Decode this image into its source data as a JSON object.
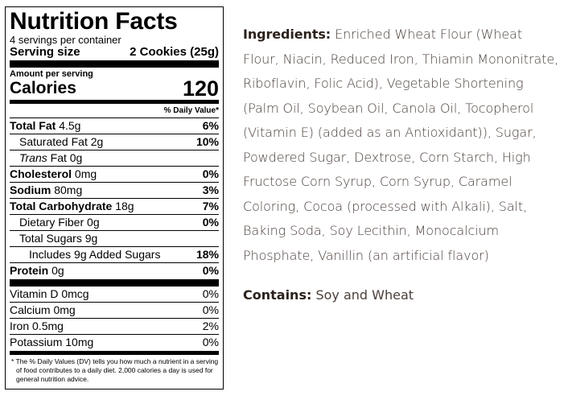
{
  "nutrition": {
    "title": "Nutrition Facts",
    "servings_per_container": "4 servings per container",
    "serving_size_label": "Serving size",
    "serving_size_value": "2 Cookies (25g)",
    "amount_per_serving": "Amount per serving",
    "calories_label": "Calories",
    "calories_value": "120",
    "daily_value_header": "% Daily Value*",
    "rows": {
      "total_fat": {
        "label": "Total Fat",
        "amount": "4.5g",
        "pct": "6%"
      },
      "saturated_fat": {
        "label": "Saturated Fat",
        "amount": "2g",
        "pct": "10%"
      },
      "trans_fat": {
        "label_italic": "Trans",
        "label": "Fat",
        "amount": "0g"
      },
      "cholesterol": {
        "label": "Cholesterol",
        "amount": "0mg",
        "pct": "0%"
      },
      "sodium": {
        "label": "Sodium",
        "amount": "80mg",
        "pct": "3%"
      },
      "total_carb": {
        "label": "Total Carbohydrate",
        "amount": "18g",
        "pct": "7%"
      },
      "dietary_fiber": {
        "label": "Dietary Fiber",
        "amount": "0g",
        "pct": "0%"
      },
      "total_sugars": {
        "label": "Total Sugars",
        "amount": "9g"
      },
      "added_sugars": {
        "label": "Includes 9g Added Sugars",
        "pct": "18%"
      },
      "protein": {
        "label": "Protein",
        "amount": "0g",
        "pct": "0%"
      }
    },
    "vitamins": [
      {
        "label": "Vitamin D  0mcg",
        "pct": "0%"
      },
      {
        "label": "Calcium  0mg",
        "pct": "0%"
      },
      {
        "label": "Iron  0.5mg",
        "pct": "2%"
      },
      {
        "label": "Potassium  10mg",
        "pct": "0%"
      }
    ],
    "footnote": "* The % Daily Values (DV) tells you how much a nutrient in a serving of food contributes to a daily diet. 2,000 calories a day is used for general nutrition advice."
  },
  "ingredients": {
    "label": "Ingredients:",
    "text": "Enriched Wheat Flour (Wheat Flour, Niacin, Reduced Iron, Thiamin Mononitrate, Riboflavin, Folic Acid), Vegetable Shortening (Palm Oil, Soybean Oil, Canola Oil, Tocopherol (Vitamin E) (added as an Antioxidant)), Sugar, Powdered Sugar, Dextrose, Corn Starch, High Fructose Corn Syrup, Corn Syrup, Caramel Coloring, Cocoa (processed with Alkali), Salt, Baking Soda, Soy Lecithin, Monocalcium Phosphate, Vanillin (an artificial flavor)"
  },
  "contains": {
    "label": "Contains:",
    "text": "Soy and Wheat"
  }
}
